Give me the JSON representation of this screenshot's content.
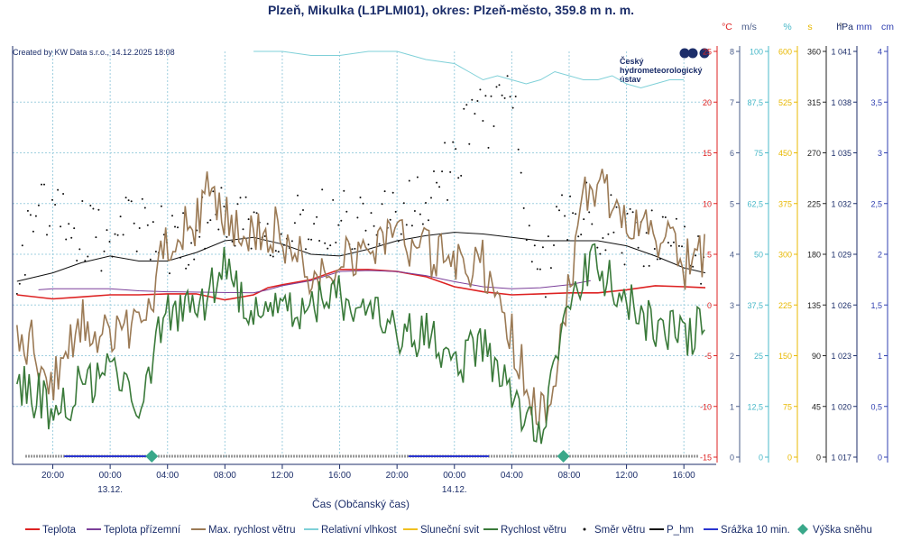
{
  "chart_data": {
    "type": "line",
    "title": "Plzeň, Mikulka (L1PLMI01), okres: Plzeň-město, 359.8 m n. m.",
    "credit": "Created by KW Data s.r.o., 14.12.2025 18:08",
    "logo_text": [
      "Český",
      "hydrometeorologický",
      "ústav"
    ],
    "xlabel": "Čas (Občanský čas)",
    "x_ticks": [
      "20:00",
      "00:00",
      "04:00",
      "08:00",
      "12:00",
      "16:00",
      "20:00",
      "00:00",
      "04:00",
      "08:00",
      "12:00",
      "16:00"
    ],
    "x_tick_hours": [
      0,
      4,
      8,
      12,
      16,
      20,
      24,
      28,
      32,
      36,
      40,
      44
    ],
    "x_dates": [
      {
        "hour": 4,
        "label": "13.12."
      },
      {
        "hour": 28,
        "label": "14.12."
      }
    ],
    "x_range_hours": [
      -2.8,
      46.0
    ],
    "axes": [
      {
        "unit": "°C",
        "color": "#dd2222",
        "min": -15,
        "max": 25,
        "ticks": [
          "-15",
          "-10",
          "-5",
          "0",
          "5",
          "10",
          "15",
          "20",
          "25"
        ]
      },
      {
        "unit": "m/s",
        "color": "#4a5d8a",
        "min": 0,
        "max": 8,
        "ticks": [
          "0",
          "1",
          "2",
          "3",
          "4",
          "5",
          "6",
          "7",
          "8"
        ]
      },
      {
        "unit": "%",
        "color": "#48b8c8",
        "min": 0,
        "max": 100,
        "ticks": [
          "0",
          "12,5",
          "25",
          "37,5",
          "50",
          "62,5",
          "75",
          "87,5",
          "100"
        ]
      },
      {
        "unit": "s",
        "color": "#e8b800",
        "min": 0,
        "max": 600,
        "ticks": [
          "0",
          "75",
          "150",
          "225",
          "300",
          "375",
          "450",
          "525",
          "600"
        ]
      },
      {
        "unit": "°",
        "color": "#222222",
        "min": 0,
        "max": 360,
        "ticks": [
          "0",
          "45",
          "90",
          "135",
          "180",
          "225",
          "270",
          "315",
          "360"
        ]
      },
      {
        "unit": "hPa",
        "color": "#1c2e6a",
        "min": 1017,
        "max": 1041,
        "ticks": [
          "1 017",
          "1 020",
          "1 023",
          "1 026",
          "1 029",
          "1 032",
          "1 035",
          "1 038",
          "1 041"
        ]
      },
      {
        "unit": "mm",
        "color": "#2f3fb0",
        "min": 0,
        "max": 4,
        "ticks": [
          "0",
          "0,5",
          "1",
          "1,5",
          "2",
          "2,5",
          "3",
          "3,5",
          "4"
        ]
      },
      {
        "unit": "cm",
        "color": "#2f3fb0",
        "min": 0,
        "max": 4,
        "ticks": [
          "0",
          "0,5",
          "1",
          "1,5",
          "2",
          "2,5",
          "3",
          "3,5",
          "4"
        ]
      }
    ],
    "legend": [
      {
        "label": "Teplota",
        "color": "#dd2222",
        "kind": "line"
      },
      {
        "label": "Teplota přízemní",
        "color": "#7b3f9a",
        "kind": "line"
      },
      {
        "label": "Max. rychlost větru",
        "color": "#9b7a55",
        "kind": "line"
      },
      {
        "label": "Relativní vlhkost",
        "color": "#7fd0d8",
        "kind": "line"
      },
      {
        "label": "Sluneční svit",
        "color": "#f0c020",
        "kind": "line"
      },
      {
        "label": "Rychlost větru",
        "color": "#3a7a3a",
        "kind": "line"
      },
      {
        "label": "Směr větru",
        "color": "#111111",
        "kind": "dot"
      },
      {
        "label": "P_hm",
        "color": "#111111",
        "kind": "line"
      },
      {
        "label": "Srážka 10 min.",
        "color": "#2a35d0",
        "kind": "line"
      },
      {
        "label": "Výška sněhu",
        "color": "#3aa88a",
        "kind": "diamond"
      }
    ],
    "series": [
      {
        "name": "Teplota",
        "axis": 0,
        "color": "#dd2222",
        "width": 1.6,
        "x": [
          -2.5,
          0,
          2,
          4,
          6,
          8,
          10,
          12,
          14,
          15,
          16,
          18,
          20,
          22,
          24,
          26,
          28,
          30,
          32,
          34,
          36,
          38,
          40,
          42,
          44,
          45.5
        ],
        "values": [
          1,
          0.6,
          0.8,
          1.0,
          1.0,
          1.1,
          1.1,
          0.5,
          1.0,
          1.7,
          2.0,
          2.5,
          3.5,
          3.5,
          3.3,
          2.8,
          1.8,
          1.3,
          1.0,
          1.1,
          1.2,
          1.2,
          1.5,
          1.9,
          1.8,
          1.7
        ]
      },
      {
        "name": "Teplota přízemní",
        "axis": 0,
        "color": "#7b3f9a",
        "width": 1,
        "x": [
          -1,
          0,
          2,
          4,
          6,
          8,
          8.5,
          14,
          15,
          16,
          18,
          20,
          22,
          24,
          26,
          28,
          30,
          32,
          34,
          36,
          37.5
        ],
        "values": [
          1.5,
          1.6,
          1.6,
          1.6,
          1.4,
          1.3,
          1.3,
          1.2,
          1.5,
          1.9,
          2.4,
          3.3,
          3.4,
          3.3,
          2.9,
          2.3,
          1.8,
          1.6,
          1.7,
          2.0,
          2.4
        ]
      },
      {
        "name": "P_hm",
        "axis": 5,
        "color": "#111111",
        "width": 1,
        "x": [
          -2.5,
          0,
          2,
          4,
          6,
          8,
          10,
          12,
          14,
          16,
          18,
          20,
          22,
          24,
          26,
          28,
          30,
          32,
          34,
          36,
          38,
          40,
          42,
          44,
          45.5
        ],
        "values": [
          1027.4,
          1027.9,
          1028.5,
          1028.9,
          1028.6,
          1028.6,
          1029.1,
          1029.8,
          1030.0,
          1029.6,
          1029.0,
          1028.9,
          1029.3,
          1029.8,
          1030.1,
          1030.3,
          1030.2,
          1030.0,
          1029.8,
          1029.8,
          1029.8,
          1029.5,
          1028.9,
          1028.2,
          1027.9
        ]
      },
      {
        "name": "Relativní vlhkost",
        "axis": 2,
        "color": "#7fd0d8",
        "width": 1,
        "x": [
          14,
          16,
          18,
          20,
          22,
          24,
          26,
          28,
          29,
          30,
          31,
          32,
          33,
          34,
          35,
          36,
          37,
          38,
          39,
          40,
          41,
          42,
          43,
          44
        ],
        "values": [
          100,
          100,
          99,
          99,
          100,
          100,
          98,
          97,
          95,
          93,
          94,
          93,
          92,
          93,
          95,
          94,
          93,
          93,
          94,
          92,
          91,
          92,
          93,
          93
        ]
      }
    ]
  }
}
